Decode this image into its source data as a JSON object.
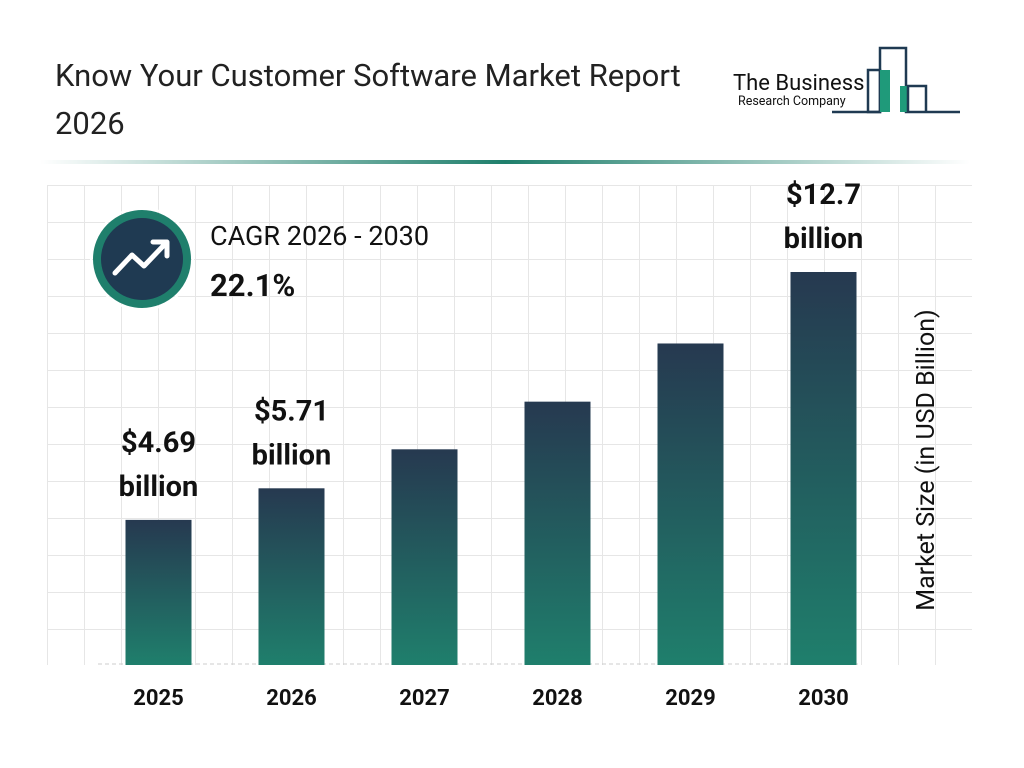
{
  "chart_data": {
    "type": "bar",
    "title": "Know Your Customer Software Market Report 2026",
    "cagr_label": "CAGR 2026 - 2030",
    "cagr_value": "22.1%",
    "y_axis_label": "Market Size (in USD Billion)",
    "categories": [
      "2025",
      "2026",
      "2027",
      "2028",
      "2029",
      "2030"
    ],
    "values": [
      4.69,
      5.71,
      6.97,
      8.51,
      10.39,
      12.7
    ],
    "value_labels": [
      "$4.69 billion",
      "$5.71 billion",
      null,
      null,
      null,
      "$12.7 billion"
    ],
    "colors": [
      "#263950",
      "#1f7f6c"
    ]
  },
  "logo": {
    "line1": "The Business",
    "line2": "Research Company"
  }
}
